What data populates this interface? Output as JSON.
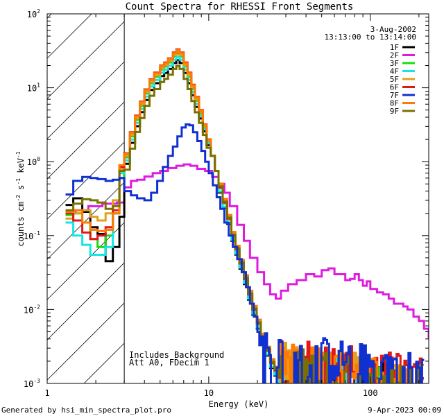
{
  "chart_data": {
    "type": "line",
    "title": "Count Spectra for RHESSI Front Segments",
    "xlabel": "Energy (keV)",
    "ylabel_parts": [
      "counts cm",
      "-2",
      " s",
      "-1",
      " keV",
      "-1"
    ],
    "xscale": "log",
    "yscale": "log",
    "xlim": [
      1,
      230
    ],
    "ylim": [
      0.001,
      100
    ],
    "x_tick_labels": [
      {
        "value": 1,
        "label": "1"
      },
      {
        "value": 10,
        "label": "10"
      },
      {
        "value": 100,
        "label": "100"
      }
    ],
    "y_tick_labels": [
      {
        "value": 100,
        "base": "10",
        "exp": "2"
      },
      {
        "value": 10,
        "base": "10",
        "exp": "1"
      },
      {
        "value": 1,
        "base": "10",
        "exp": "0"
      },
      {
        "value": 0.1,
        "base": "10",
        "exp": "-1"
      },
      {
        "value": 0.01,
        "base": "10",
        "exp": "-2"
      },
      {
        "value": 0.001,
        "base": "10",
        "exp": "-3"
      }
    ],
    "shaded_region": {
      "x_from": 1,
      "x_to": 3,
      "style": "diagonal hatch"
    },
    "annotations": {
      "date": "3-Aug-2002",
      "time_range": "13:13:00 to 13:14:00",
      "background_note": "Includes Background",
      "attenuator_note": "Att A0, FDecim 1"
    },
    "footer_left": "Generated by hsi_min_spectra_plot.pro",
    "footer_right": "9-Apr-2023 00:09",
    "series": [
      {
        "name": "1F",
        "color": "#000000",
        "low_e": [
          0.26,
          0.32,
          0.21,
          0.13,
          0.105,
          0.045,
          0.07,
          0.18
        ],
        "peak_scale": 0.72,
        "hi_scale": 1.0,
        "noise": 0.9
      },
      {
        "name": "2F",
        "color": "#e01be0",
        "special": "coarse",
        "x": [
          1.3,
          1.5,
          1.8,
          2.2,
          2.7,
          3.0,
          3.3,
          3.6,
          4.0,
          4.5,
          5.0,
          5.6,
          6.3,
          7.0,
          7.7,
          8.5,
          9.5,
          10.5,
          11.5,
          12.5,
          13.5,
          15,
          16.5,
          18,
          20,
          22,
          24,
          26,
          28,
          31,
          35,
          40,
          45,
          50,
          55,
          60,
          65,
          70,
          75,
          80,
          85,
          90,
          95,
          100,
          110,
          120,
          130,
          140,
          150,
          160,
          170,
          185,
          200,
          215,
          230
        ],
        "y": [
          0.2,
          0.22,
          0.25,
          0.27,
          0.28,
          0.45,
          0.55,
          0.57,
          0.63,
          0.7,
          0.75,
          0.82,
          0.88,
          0.92,
          0.88,
          0.8,
          0.75,
          0.62,
          0.5,
          0.38,
          0.25,
          0.14,
          0.085,
          0.05,
          0.032,
          0.022,
          0.016,
          0.014,
          0.018,
          0.022,
          0.025,
          0.03,
          0.028,
          0.034,
          0.036,
          0.03,
          0.03,
          0.025,
          0.026,
          0.03,
          0.025,
          0.021,
          0.024,
          0.019,
          0.017,
          0.016,
          0.014,
          0.012,
          0.012,
          0.011,
          0.01,
          0.008,
          0.007,
          0.0055,
          0.0042
        ]
      },
      {
        "name": "3F",
        "color": "#16dd16",
        "low_e": [
          0.19,
          0.2,
          0.15,
          0.09,
          0.07,
          0.1,
          0.2,
          0.6
        ],
        "peak_scale": 0.88,
        "hi_scale": 0.8,
        "noise": 1.0
      },
      {
        "name": "4F",
        "color": "#14e6e6",
        "low_e": [
          0.15,
          0.1,
          0.075,
          0.055,
          0.055,
          0.07,
          0.2,
          0.7
        ],
        "peak_scale": 0.8,
        "hi_scale": 0.95,
        "noise": 1.0
      },
      {
        "name": "5F",
        "color": "#e0a020",
        "low_e": [
          0.17,
          0.2,
          0.22,
          0.18,
          0.16,
          0.2,
          0.3,
          0.8
        ],
        "peak_scale": 0.92,
        "hi_scale": 1.05,
        "noise": 1.1
      },
      {
        "name": "6F",
        "color": "#e01818",
        "low_e": [
          0.2,
          0.16,
          0.11,
          0.09,
          0.1,
          0.13,
          0.22,
          0.85
        ],
        "peak_scale": 1.0,
        "hi_scale": 1.15,
        "noise": 1.2
      },
      {
        "name": "7F",
        "color": "#1030d0",
        "special": "detector7",
        "low_e": [
          0.36,
          0.55,
          0.62,
          0.6,
          0.58,
          0.55,
          0.57,
          0.6
        ],
        "peak_scale": 0.1,
        "hi_scale": 1.25,
        "noise": 1.3
      },
      {
        "name": "8F",
        "color": "#ff7a00",
        "low_e": [
          0.21,
          0.22,
          0.15,
          0.12,
          0.115,
          0.12,
          0.2,
          0.9
        ],
        "peak_scale": 0.98,
        "hi_scale": 1.0,
        "noise": 1.15
      },
      {
        "name": "9F",
        "color": "#7a7000",
        "low_e": [
          0.22,
          0.27,
          0.31,
          0.3,
          0.28,
          0.23,
          0.25,
          0.75
        ],
        "peak_scale": 0.6,
        "hi_scale": 0.95,
        "noise": 1.1
      }
    ],
    "generic_shape": {
      "x": [
        3.0,
        3.25,
        3.5,
        3.75,
        4.0,
        4.3,
        4.6,
        5.0,
        5.3,
        5.6,
        6.0,
        6.3,
        6.6,
        7.0,
        7.4,
        7.8,
        8.2,
        8.7,
        9.2,
        9.7,
        10.3,
        10.9,
        11.5,
        12.2,
        13.0,
        13.8,
        14.6,
        15.5,
        16.5,
        17.5,
        18.6,
        19.8,
        21.0,
        22.5,
        24.0,
        25.5,
        27.0
      ],
      "y": [
        1.3,
        2.5,
        4.2,
        6.5,
        9.5,
        13,
        16,
        20,
        22,
        25,
        30,
        33,
        30,
        22,
        16,
        11,
        7.5,
        5,
        3.2,
        2.0,
        1.2,
        0.75,
        0.45,
        0.28,
        0.17,
        0.1,
        0.065,
        0.042,
        0.026,
        0.016,
        0.01,
        0.0065,
        0.0042,
        0.0028,
        0.0019,
        0.0015,
        0.0012
      ]
    },
    "detector7_shape": {
      "x": [
        3.0,
        3.3,
        3.6,
        4.0,
        4.4,
        4.8,
        5.2,
        5.6,
        6.0,
        6.4,
        6.8,
        7.2,
        7.6,
        8.0,
        8.5,
        9.0,
        9.5,
        10.0,
        10.6,
        11.2,
        11.8,
        12.5,
        13.3,
        14.1,
        15.0,
        16.0,
        17.0,
        18.0,
        19.0,
        20.0
      ],
      "y": [
        0.4,
        0.35,
        0.32,
        0.3,
        0.38,
        0.55,
        0.85,
        1.2,
        1.6,
        2.2,
        2.9,
        3.2,
        3.1,
        2.5,
        1.9,
        1.4,
        1.0,
        0.7,
        0.48,
        0.33,
        0.23,
        0.15,
        0.1,
        0.07,
        0.048,
        0.032,
        0.02,
        0.012,
        0.008,
        0.005
      ]
    }
  }
}
